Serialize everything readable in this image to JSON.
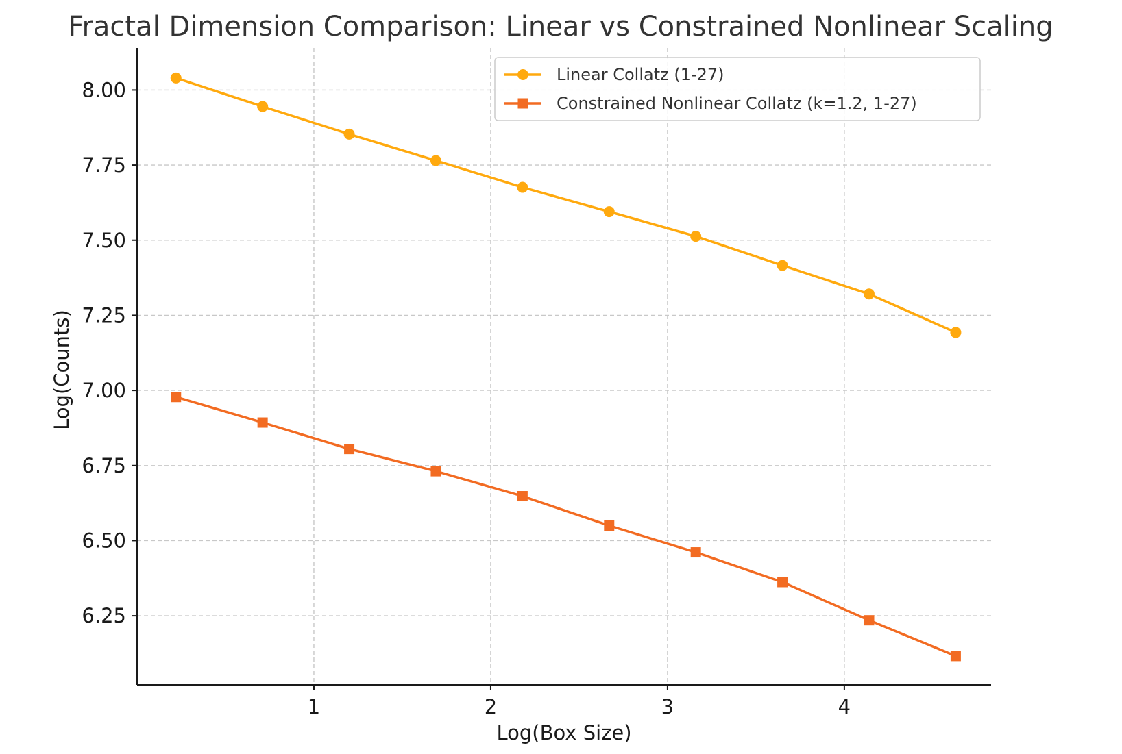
{
  "chart_data": {
    "type": "line",
    "title": "Fractal Dimension Comparison: Linear vs Constrained Nonlinear Scaling",
    "xlabel": "Log(Box Size)",
    "ylabel": "Log(Counts)",
    "xlim": [
      0.0,
      4.83
    ],
    "ylim": [
      6.02,
      8.14
    ],
    "xticks": [
      1,
      2,
      3,
      4
    ],
    "xtick_labels": [
      "1",
      "2",
      "3",
      "4"
    ],
    "yticks": [
      6.25,
      6.5,
      6.75,
      7.0,
      7.25,
      7.5,
      7.75,
      8.0
    ],
    "ytick_labels": [
      "6.25",
      "6.50",
      "6.75",
      "7.00",
      "7.25",
      "7.50",
      "7.75",
      "8.00"
    ],
    "grid": true,
    "legend_position": "top-right",
    "x": [
      0.22,
      0.71,
      1.2,
      1.69,
      2.18,
      2.67,
      3.16,
      3.65,
      4.14,
      4.63
    ],
    "series": [
      {
        "name": "Linear Collatz (1-27)",
        "marker": "circle",
        "color": "#FFA90E",
        "values": [
          8.04,
          7.945,
          7.853,
          7.765,
          7.676,
          7.595,
          7.513,
          7.416,
          7.321,
          7.193
        ]
      },
      {
        "name": "Constrained Nonlinear Collatz (k=1.2, 1-27)",
        "marker": "square",
        "color": "#F26B22",
        "values": [
          6.978,
          6.893,
          6.805,
          6.731,
          6.648,
          6.55,
          6.461,
          6.362,
          6.235,
          6.116
        ]
      }
    ]
  }
}
